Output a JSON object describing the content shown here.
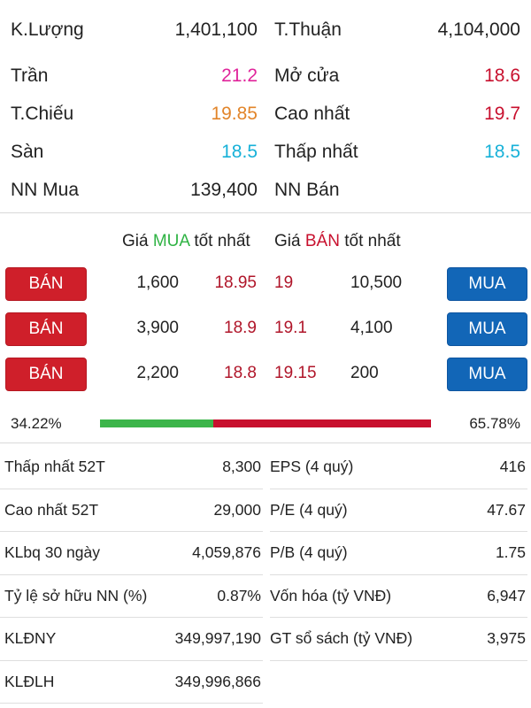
{
  "summary": {
    "rows": [
      {
        "l_label": "K.Lượng",
        "l_value": "1,401,100",
        "l_color": "dark",
        "r_label": "T.Thuận",
        "r_value": "4,104,000",
        "r_color": "dark"
      },
      {
        "l_label": "Trần",
        "l_value": "21.2",
        "l_color": "pink",
        "r_label": "Mở cửa",
        "r_value": "18.6",
        "r_color": "red"
      },
      {
        "l_label": "T.Chiếu",
        "l_value": "19.85",
        "l_color": "orange",
        "r_label": "Cao nhất",
        "r_value": "19.7",
        "r_color": "red"
      },
      {
        "l_label": "Sàn",
        "l_value": "18.5",
        "l_color": "cyan",
        "r_label": "Thấp nhất",
        "r_value": "18.5",
        "r_color": "cyan"
      },
      {
        "l_label": "NN Mua",
        "l_value": "139,400",
        "l_color": "dark",
        "r_label": "NN Bán",
        "r_value": "",
        "r_color": "dark"
      }
    ]
  },
  "orderbook": {
    "buy_header_prefix": "Giá",
    "buy_header_word": "MUA",
    "buy_header_suffix": "tốt nhất",
    "sell_header_prefix": "Giá",
    "sell_header_word": "BÁN",
    "sell_header_suffix": "tốt nhất",
    "sell_button": "BÁN",
    "buy_button": "MUA",
    "rows": [
      {
        "buy_volume": "1,600",
        "buy_price": "18.95",
        "sell_price": "19",
        "sell_volume": "10,500"
      },
      {
        "buy_volume": "3,900",
        "buy_price": "18.9",
        "sell_price": "19.1",
        "sell_volume": "4,100"
      },
      {
        "buy_volume": "2,200",
        "buy_price": "18.8",
        "sell_price": "19.15",
        "sell_volume": "200"
      }
    ]
  },
  "ratio": {
    "buy_percent_label": "34.22%",
    "sell_percent_label": "65.78%",
    "buy_fraction": 0.3422,
    "buy_color": "#3cb54a",
    "sell_color": "#c8102e"
  },
  "stats": {
    "rows": [
      {
        "l_label": "Thấp nhất 52T",
        "l_value": "8,300",
        "r_label": "EPS (4 quý)",
        "r_value": "416"
      },
      {
        "l_label": "Cao nhất 52T",
        "l_value": "29,000",
        "r_label": "P/E (4 quý)",
        "r_value": "47.67"
      },
      {
        "l_label": "KLbq 30 ngày",
        "l_value": "4,059,876",
        "r_label": "P/B (4 quý)",
        "r_value": "1.75"
      },
      {
        "l_label": "Tỷ lệ sở hữu NN (%)",
        "l_value": "0.87%",
        "r_label": "Vốn hóa (tỷ VNĐ)",
        "r_value": "6,947"
      },
      {
        "l_label": "KLĐNY",
        "l_value": "349,997,190",
        "r_label": "GT sổ sách (tỷ VNĐ)",
        "r_value": "3,975"
      },
      {
        "l_label": "KLĐLH",
        "l_value": "349,996,866",
        "r_label": "",
        "r_value": ""
      }
    ]
  },
  "colors": {
    "pink": "#e0259b",
    "red": "#c8102e",
    "orange": "#e2852a",
    "cyan": "#17b1d8",
    "dark": "#222222",
    "sell_button_bg": "#cf1f2a",
    "buy_button_bg": "#1266b7"
  }
}
